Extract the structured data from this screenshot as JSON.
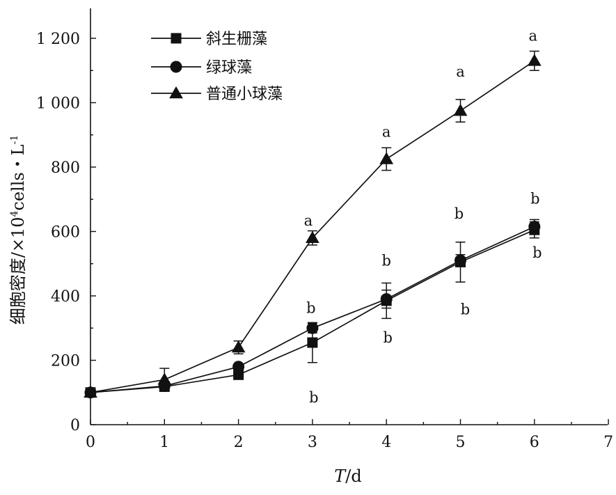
{
  "chart_data": {
    "type": "line",
    "x": [
      0,
      1,
      2,
      3,
      4,
      5,
      6
    ],
    "x_ticks": [
      "0",
      "1",
      "2",
      "3",
      "4",
      "5",
      "6",
      "7"
    ],
    "y_ticks": [
      "0",
      "200",
      "400",
      "600",
      "800",
      "1 000",
      "1 200"
    ],
    "xlim": [
      0,
      7
    ],
    "ylim": [
      0,
      1300
    ],
    "xlabel_italic": "T",
    "xlabel_rest": "/d",
    "ylabel_main": "细胞密度/×10",
    "ylabel_sup1": "4",
    "ylabel_mid": "cells・L",
    "ylabel_sup2": "-1",
    "grid": false,
    "legend_position": "top-left",
    "series": [
      {
        "name": "斜生栅藻",
        "marker": "square",
        "values": [
          100,
          118,
          155,
          255,
          385,
          505,
          605
        ],
        "errors": [
          5,
          10,
          8,
          62,
          55,
          62,
          25
        ],
        "labels": [
          "",
          "",
          "",
          "b",
          "b",
          "b",
          "b"
        ]
      },
      {
        "name": "绿球藻",
        "marker": "circle",
        "values": [
          100,
          120,
          180,
          300,
          390,
          510,
          615
        ],
        "errors": [
          5,
          10,
          10,
          15,
          28,
          18,
          22
        ],
        "labels": [
          "",
          "",
          "",
          "b",
          "b",
          "b",
          "b"
        ]
      },
      {
        "name": "普通小球藻",
        "marker": "triangle",
        "values": [
          100,
          140,
          240,
          580,
          825,
          975,
          1130
        ],
        "errors": [
          5,
          35,
          20,
          22,
          35,
          35,
          30
        ],
        "labels": [
          "",
          "",
          "",
          "a",
          "a",
          "a",
          "a"
        ]
      }
    ]
  }
}
